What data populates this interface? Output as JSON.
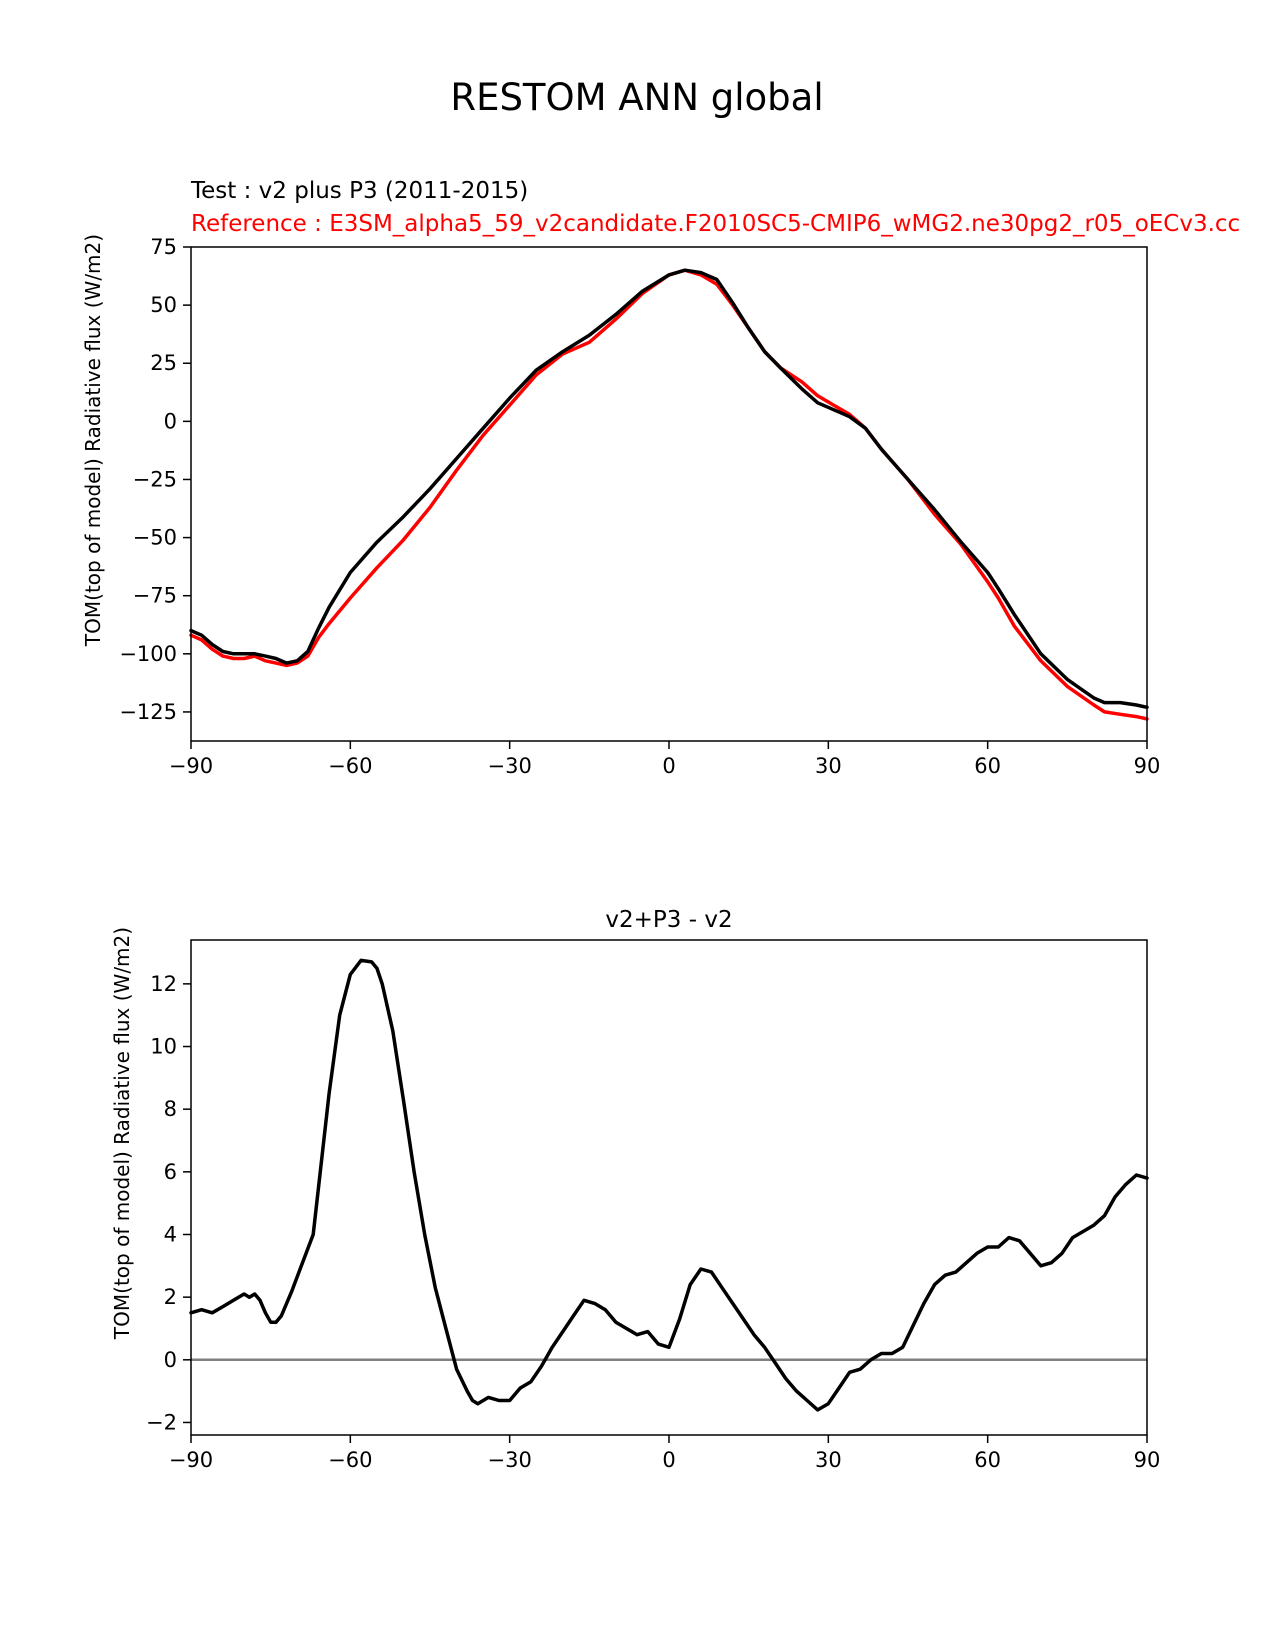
{
  "figure": {
    "suptitle": "RESTOM ANN global"
  },
  "chart_data": [
    {
      "type": "line",
      "title_test": "Test : v2 plus P3 (2011-2015)",
      "title_reference": "Reference : E3SM_alpha5_59_v2candidate.F2010SC5-CMIP6_wMG2.ne30pg2_r05_oECv3.cc",
      "xlabel": "",
      "ylabel": "TOM(top of model) Radiative flux (W/m2)",
      "xlim": [
        -90,
        90
      ],
      "ylim": [
        -137.5,
        75
      ],
      "xticks": [
        -90,
        -60,
        -30,
        0,
        30,
        60,
        90
      ],
      "xtick_labels": [
        "−90",
        "−60",
        "−30",
        "0",
        "30",
        "60",
        "90"
      ],
      "yticks": [
        75,
        50,
        25,
        0,
        -25,
        -50,
        -75,
        -100,
        -125
      ],
      "ytick_labels": [
        "75",
        "50",
        "25",
        "0",
        "−25",
        "−50",
        "−75",
        "−100",
        "−125"
      ],
      "grid": false,
      "series": [
        {
          "color": "#ff0000",
          "x": [
            -90,
            -88,
            -86,
            -84,
            -82,
            -80,
            -78,
            -76,
            -74,
            -72,
            -70,
            -68,
            -66,
            -64,
            -60,
            -55,
            -50,
            -45,
            -40,
            -35,
            -30,
            -25,
            -20,
            -15,
            -10,
            -5,
            0,
            3,
            6,
            9,
            12,
            15,
            18,
            21,
            25,
            28,
            31,
            34,
            37,
            40,
            45,
            50,
            55,
            60,
            62,
            65,
            70,
            75,
            80,
            82,
            85,
            88,
            90
          ],
          "y": [
            -92,
            -94,
            -98,
            -101,
            -102,
            -102,
            -101,
            -103,
            -104,
            -105,
            -104,
            -101,
            -93,
            -87,
            -76,
            -63,
            -51,
            -37,
            -21,
            -6,
            7,
            20,
            29,
            34,
            44,
            55,
            63,
            65,
            63,
            59,
            50,
            40,
            30,
            23,
            17,
            11,
            7,
            3,
            -3,
            -12,
            -25,
            -40,
            -53,
            -69,
            -76,
            -88,
            -103,
            -114,
            -122,
            -125,
            -126,
            -127,
            -128
          ]
        },
        {
          "color": "#000000",
          "x": [
            -90,
            -88,
            -86,
            -84,
            -82,
            -80,
            -78,
            -76,
            -74,
            -72,
            -70,
            -68,
            -66,
            -64,
            -60,
            -55,
            -50,
            -45,
            -40,
            -35,
            -30,
            -25,
            -20,
            -15,
            -10,
            -5,
            0,
            3,
            6,
            9,
            12,
            15,
            18,
            21,
            25,
            28,
            31,
            34,
            37,
            40,
            45,
            50,
            55,
            60,
            62,
            65,
            70,
            75,
            80,
            82,
            85,
            88,
            90
          ],
          "y": [
            -90,
            -92,
            -96,
            -99,
            -100,
            -100,
            -100,
            -101,
            -102,
            -104,
            -103,
            -99,
            -89,
            -80,
            -65,
            -52,
            -41,
            -29,
            -16,
            -3,
            10,
            22,
            30,
            37,
            46,
            56,
            63,
            65,
            64,
            61,
            51,
            40,
            30,
            23,
            14,
            8,
            5,
            2,
            -3,
            -12,
            -25,
            -38,
            -52,
            -65,
            -72,
            -83,
            -100,
            -111,
            -119,
            -121,
            -121,
            -122,
            -123
          ]
        }
      ]
    },
    {
      "type": "line",
      "title": "v2+P3 - v2",
      "xlabel": "",
      "ylabel": "TOM(top of model) Radiative flux (W/m2)",
      "xlim": [
        -90,
        90
      ],
      "ylim": [
        -2.4,
        13.4
      ],
      "xticks": [
        -90,
        -60,
        -30,
        0,
        30,
        60,
        90
      ],
      "xtick_labels": [
        "−90",
        "−60",
        "−30",
        "0",
        "30",
        "60",
        "90"
      ],
      "yticks": [
        12,
        10,
        8,
        6,
        4,
        2,
        0,
        -2
      ],
      "ytick_labels": [
        "12",
        "10",
        "8",
        "6",
        "4",
        "2",
        "0",
        "−2"
      ],
      "grid": false,
      "zero_line_color": "#808080",
      "series": [
        {
          "color": "#000000",
          "x": [
            -90,
            -88,
            -86,
            -84,
            -82,
            -80,
            -79,
            -78,
            -77,
            -76,
            -75,
            -74,
            -73,
            -71,
            -69,
            -67,
            -66,
            -64,
            -62,
            -60,
            -58,
            -56,
            -55,
            -54,
            -52,
            -50,
            -48,
            -46,
            -44,
            -42,
            -40,
            -38,
            -37,
            -36,
            -34,
            -32,
            -30,
            -28,
            -26,
            -24,
            -22,
            -20,
            -18,
            -16,
            -14,
            -12,
            -10,
            -8,
            -6,
            -4,
            -2,
            0,
            2,
            4,
            6,
            8,
            10,
            12,
            14,
            16,
            18,
            20,
            22,
            24,
            26,
            28,
            30,
            32,
            34,
            36,
            38,
            40,
            42,
            44,
            46,
            48,
            50,
            52,
            54,
            56,
            58,
            60,
            62,
            64,
            66,
            68,
            70,
            72,
            74,
            76,
            78,
            80,
            82,
            84,
            86,
            88,
            90
          ],
          "y": [
            1.5,
            1.6,
            1.5,
            1.7,
            1.9,
            2.1,
            2.0,
            2.1,
            1.9,
            1.5,
            1.2,
            1.2,
            1.4,
            2.2,
            3.1,
            4.0,
            5.5,
            8.5,
            11.0,
            12.3,
            12.75,
            12.7,
            12.5,
            12.0,
            10.5,
            8.3,
            6.0,
            4.0,
            2.3,
            1.0,
            -0.3,
            -1.0,
            -1.3,
            -1.4,
            -1.2,
            -1.3,
            -1.3,
            -0.9,
            -0.7,
            -0.2,
            0.4,
            0.9,
            1.4,
            1.9,
            1.8,
            1.6,
            1.2,
            1.0,
            0.8,
            0.9,
            0.5,
            0.4,
            1.3,
            2.4,
            2.9,
            2.8,
            2.3,
            1.8,
            1.3,
            0.8,
            0.4,
            -0.1,
            -0.6,
            -1.0,
            -1.3,
            -1.6,
            -1.4,
            -0.9,
            -0.4,
            -0.3,
            0.0,
            0.2,
            0.2,
            0.4,
            1.1,
            1.8,
            2.4,
            2.7,
            2.8,
            3.1,
            3.4,
            3.6,
            3.6,
            3.9,
            3.8,
            3.4,
            3.0,
            3.1,
            3.4,
            3.9,
            4.1,
            4.3,
            4.6,
            5.2,
            5.6,
            5.9,
            5.8
          ]
        }
      ]
    }
  ]
}
